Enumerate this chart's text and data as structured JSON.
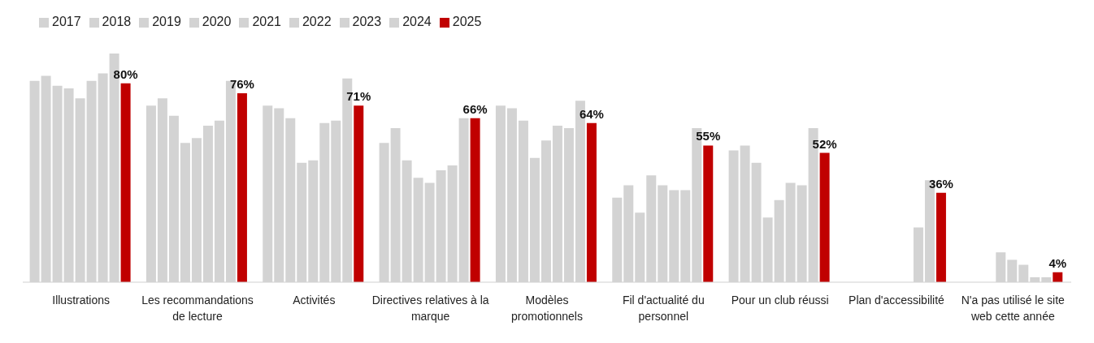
{
  "chart_data": {
    "type": "bar",
    "categories": [
      "Illustrations",
      "Les recommandations de lecture",
      "Activités",
      "Directives relatives à la marque",
      "Modèles promotionnels",
      "Fil d'actualité du personnel",
      "Pour un club réussi",
      "Plan d'accessibilité",
      "N'a pas utilisé le site web cette année"
    ],
    "series": [
      {
        "name": "2017",
        "color": "#d3d3d3",
        "values": [
          81,
          71,
          71,
          56,
          71,
          34,
          53,
          null,
          null
        ]
      },
      {
        "name": "2018",
        "color": "#d3d3d3",
        "values": [
          83,
          74,
          70,
          62,
          70,
          39,
          55,
          null,
          null
        ]
      },
      {
        "name": "2019",
        "color": "#d3d3d3",
        "values": [
          79,
          67,
          66,
          49,
          65,
          28,
          48,
          null,
          null
        ]
      },
      {
        "name": "2020",
        "color": "#d3d3d3",
        "values": [
          78,
          56,
          48,
          42,
          50,
          43,
          26,
          null,
          12
        ]
      },
      {
        "name": "2021",
        "color": "#d3d3d3",
        "values": [
          74,
          58,
          49,
          40,
          57,
          39,
          33,
          null,
          9
        ]
      },
      {
        "name": "2022",
        "color": "#d3d3d3",
        "values": [
          81,
          63,
          64,
          45,
          63,
          37,
          40,
          null,
          7
        ]
      },
      {
        "name": "2023",
        "color": "#d3d3d3",
        "values": [
          84,
          65,
          65,
          47,
          62,
          37,
          39,
          22,
          2
        ]
      },
      {
        "name": "2024",
        "color": "#d3d3d3",
        "values": [
          92,
          81,
          82,
          66,
          73,
          62,
          62,
          41,
          2
        ]
      },
      {
        "name": "2025",
        "color": "#c00000",
        "values": [
          80,
          76,
          71,
          66,
          64,
          55,
          52,
          36,
          4
        ],
        "value_labels": [
          "80%",
          "76%",
          "71%",
          "66%",
          "64%",
          "55%",
          "52%",
          "36%",
          "4%"
        ]
      }
    ],
    "legend": "top left"
  }
}
